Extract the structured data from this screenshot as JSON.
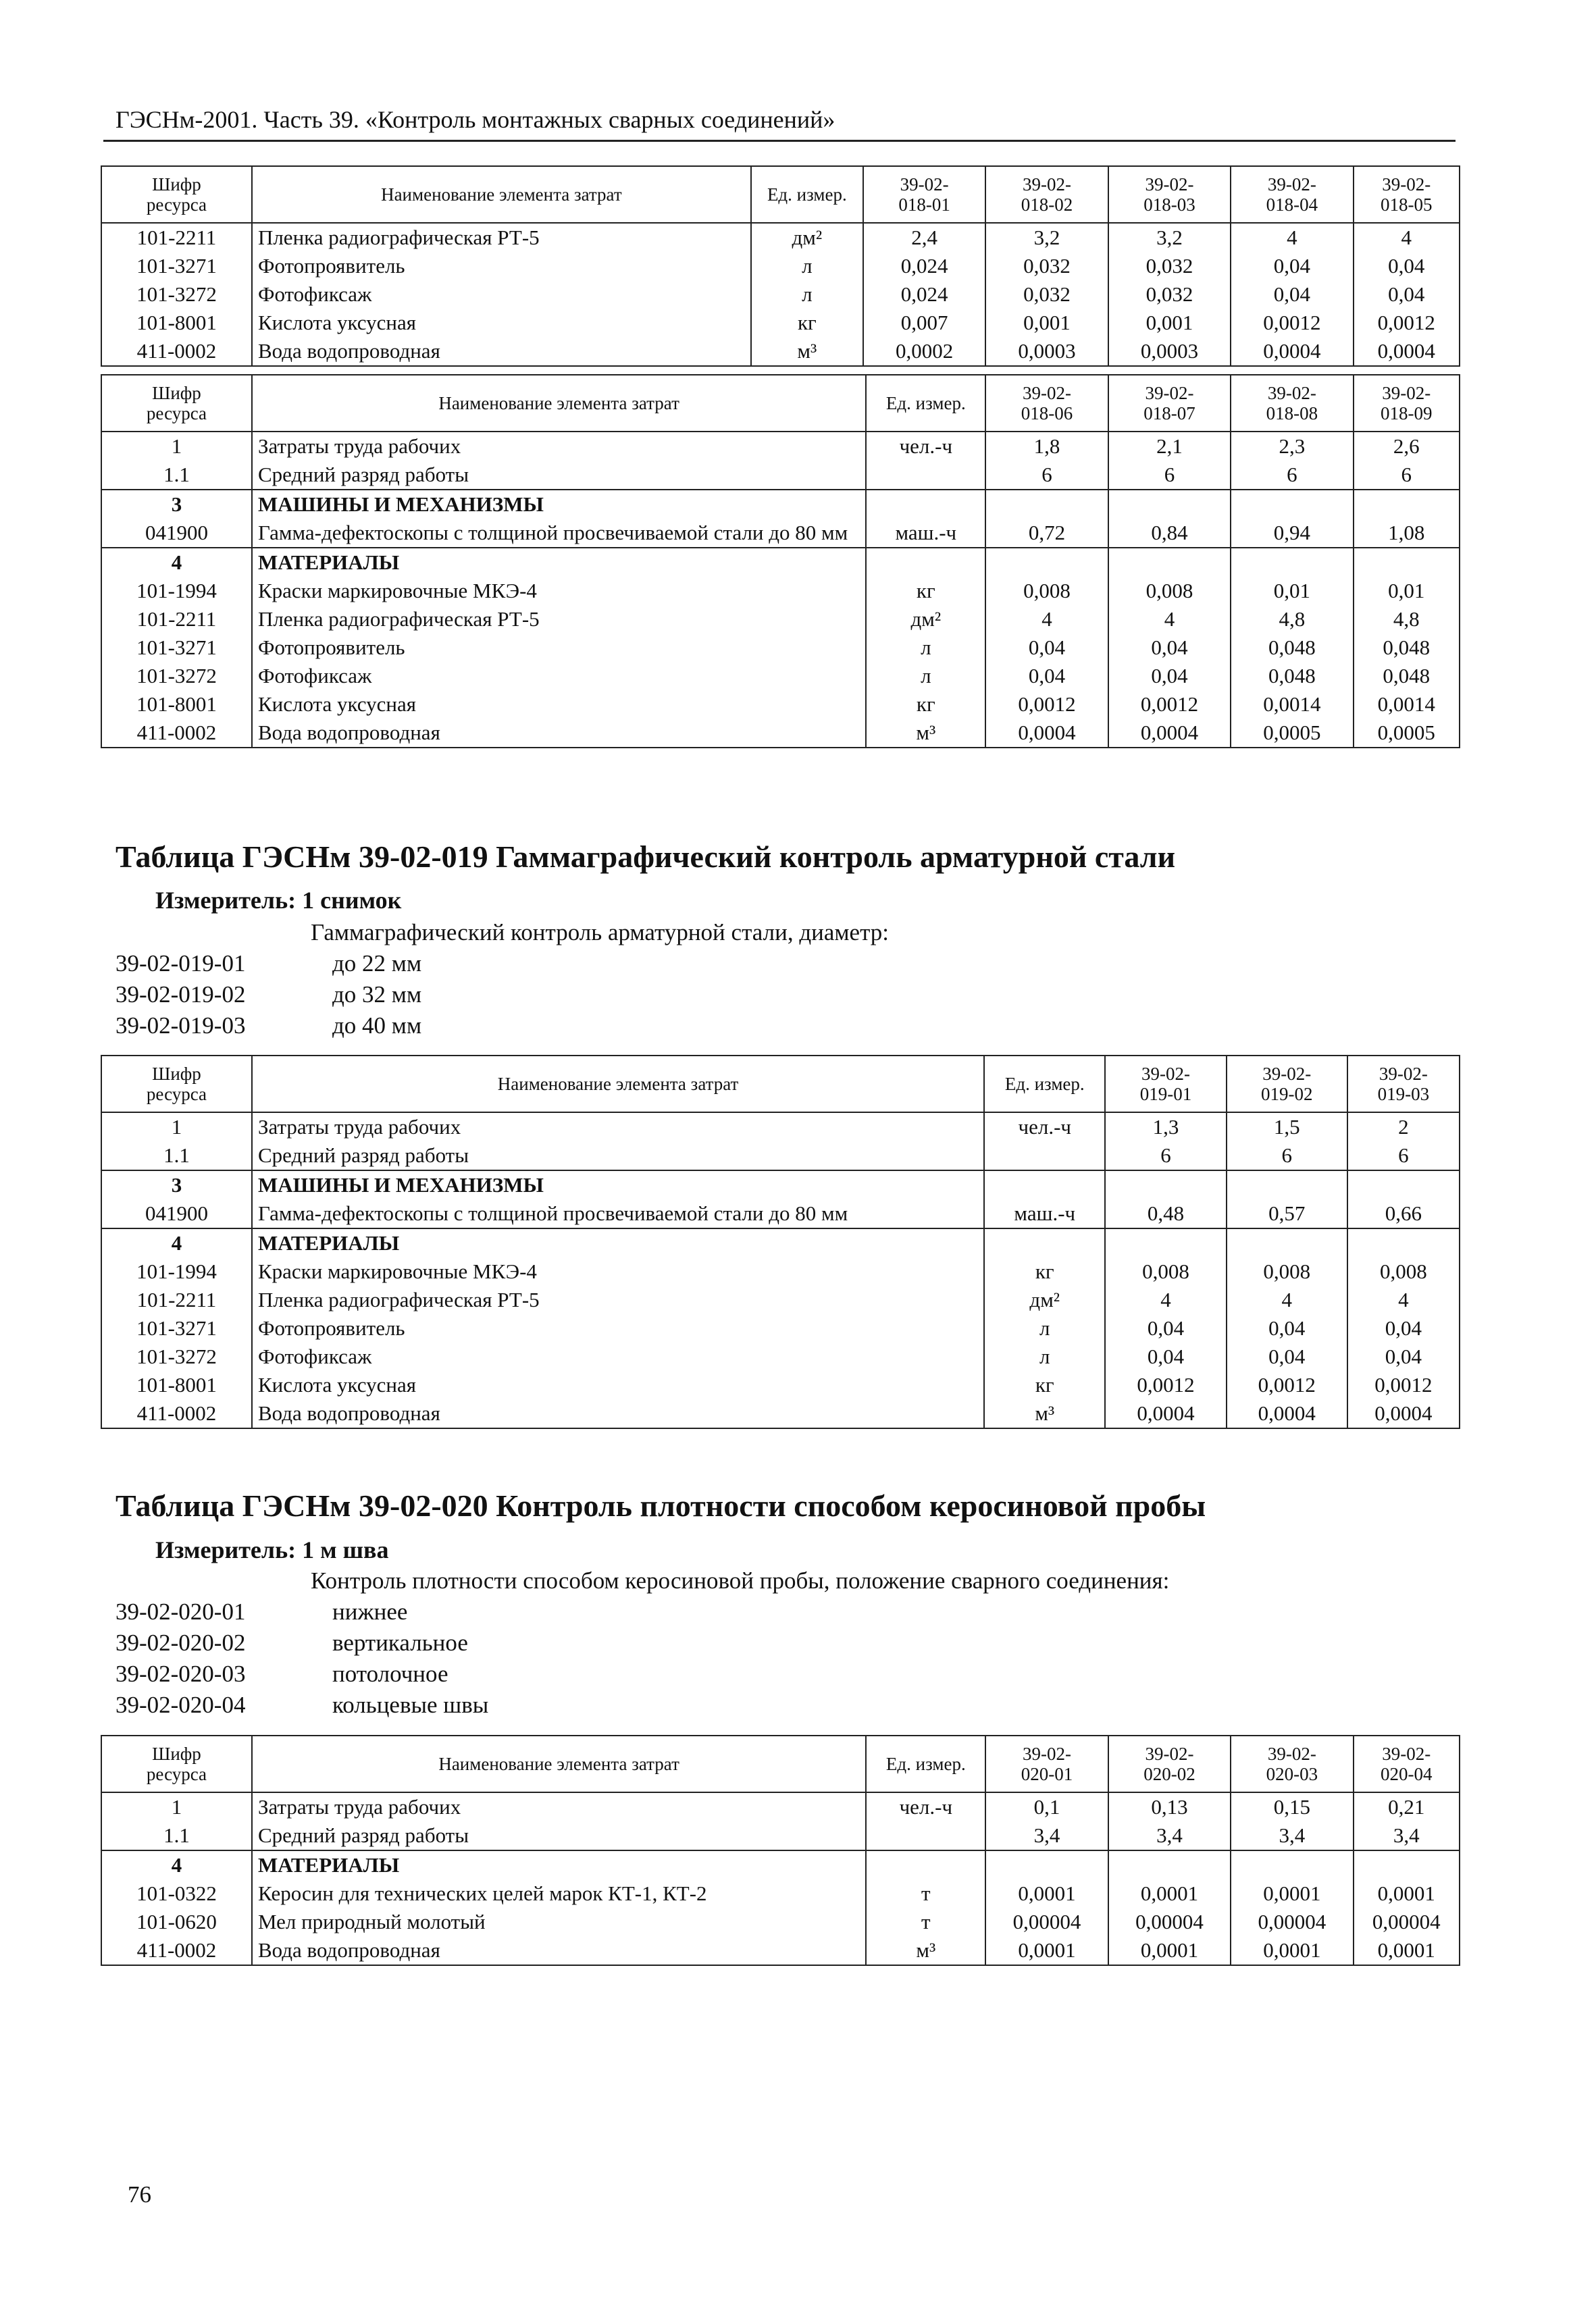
{
  "header": "ГЭСНм-2001. Часть 39. «Контроль монтажных сварных соединений»",
  "blocks": [
    {
      "table": {
        "columns": [
          "Шифр ресурса",
          "Наименование элемента затрат",
          "Ед. измер.",
          "39-02-018-01",
          "39-02-018-02",
          "39-02-018-03",
          "39-02-018-04",
          "39-02-018-05"
        ],
        "body": [
          [
            [
              "101-2211",
              "Пленка радиографическая РТ-5",
              "дм²",
              "2,4",
              "3,2",
              "3,2",
              "4",
              "4"
            ],
            [
              "101-3271",
              "Фотопроявитель",
              "л",
              "0,024",
              "0,032",
              "0,032",
              "0,04",
              "0,04"
            ],
            [
              "101-3272",
              "Фотофиксаж",
              "л",
              "0,024",
              "0,032",
              "0,032",
              "0,04",
              "0,04"
            ],
            [
              "101-8001",
              "Кислота уксусная",
              "кг",
              "0,007",
              "0,001",
              "0,001",
              "0,0012",
              "0,0012"
            ],
            [
              "411-0002",
              "Вода водопроводная",
              "м³",
              "0,0002",
              "0,0003",
              "0,0003",
              "0,0004",
              "0,0004"
            ]
          ]
        ]
      }
    },
    {
      "table": {
        "columns": [
          "Шифр ресурса",
          "Наименование элемента затрат",
          "Ед. измер.",
          "39-02-018-06",
          "39-02-018-07",
          "39-02-018-08",
          "39-02-018-09"
        ],
        "body": [
          [
            [
              "1",
              "Затраты труда рабочих",
              "чел.-ч",
              "1,8",
              "2,1",
              "2,3",
              "2,6"
            ],
            [
              "1.1",
              "Средний разряд работы",
              null,
              "6",
              "6",
              "6",
              "6"
            ]
          ],
          [
            [
              "3",
              "МАШИНЫ И МЕХАНИЗМЫ"
            ],
            [
              "041900",
              "Гамма-дефектоскопы с толщиной просвечиваемой стали до 80 мм",
              "маш.-ч",
              "0,72",
              "0,84",
              "0,94",
              "1,08"
            ]
          ],
          [
            [
              "4",
              "МАТЕРИАЛЫ"
            ],
            [
              "101-1994",
              "Краски маркировочные МКЭ-4",
              "кг",
              "0,008",
              "0,008",
              "0,01",
              "0,01"
            ],
            [
              "101-2211",
              "Пленка радиографическая РТ-5",
              "дм²",
              "4",
              "4",
              "4,8",
              "4,8"
            ],
            [
              "101-3271",
              "Фотопроявитель",
              "л",
              "0,04",
              "0,04",
              "0,048",
              "0,048"
            ],
            [
              "101-3272",
              "Фотофиксаж",
              "л",
              "0,04",
              "0,04",
              "0,048",
              "0,048"
            ],
            [
              "101-8001",
              "Кислота уксусная",
              "кг",
              "0,0012",
              "0,0012",
              "0,0014",
              "0,0014"
            ],
            [
              "411-0002",
              "Вода водопроводная",
              "м³",
              "0,0004",
              "0,0004",
              "0,0005",
              "0,0005"
            ]
          ]
        ]
      }
    },
    {
      "title": "Таблица ГЭСНм 39-02-019 Гаммаграфический контроль арматурной стали",
      "meter": "Измеритель: 1 снимок",
      "description": "Гаммаграфический контроль арматурной стали, диаметр:",
      "items": [
        [
          "39-02-019-01",
          "до 22 мм"
        ],
        [
          "39-02-019-02",
          "до 32 мм"
        ],
        [
          "39-02-019-03",
          "до 40 мм"
        ]
      ],
      "table": {
        "columns": [
          "Шифр ресурса",
          "Наименование элемента затрат",
          "Ед. измер.",
          "39-02-019-01",
          "39-02-019-02",
          "39-02-019-03"
        ],
        "body": [
          [
            [
              "1",
              "Затраты труда рабочих",
              "чел.-ч",
              "1,3",
              "1,5",
              "2"
            ],
            [
              "1.1",
              "Средний разряд работы",
              null,
              "6",
              "6",
              "6"
            ]
          ],
          [
            [
              "3",
              "МАШИНЫ И МЕХАНИЗМЫ"
            ],
            [
              "041900",
              "Гамма-дефектоскопы с толщиной просвечиваемой стали до 80 мм",
              "маш.-ч",
              "0,48",
              "0,57",
              "0,66"
            ]
          ],
          [
            [
              "4",
              "МАТЕРИАЛЫ"
            ],
            [
              "101-1994",
              "Краски маркировочные МКЭ-4",
              "кг",
              "0,008",
              "0,008",
              "0,008"
            ],
            [
              "101-2211",
              "Пленка радиографическая РТ-5",
              "дм²",
              "4",
              "4",
              "4"
            ],
            [
              "101-3271",
              "Фотопроявитель",
              "л",
              "0,04",
              "0,04",
              "0,04"
            ],
            [
              "101-3272",
              "Фотофиксаж",
              "л",
              "0,04",
              "0,04",
              "0,04"
            ],
            [
              "101-8001",
              "Кислота уксусная",
              "кг",
              "0,0012",
              "0,0012",
              "0,0012"
            ],
            [
              "411-0002",
              "Вода водопроводная",
              "м³",
              "0,0004",
              "0,0004",
              "0,0004"
            ]
          ]
        ]
      }
    },
    {
      "title": "Таблица ГЭСНм 39-02-020 Контроль плотности способом керосиновой пробы",
      "meter": "Измеритель: 1 м шва",
      "description": "Контроль плотности способом керосиновой пробы, положение сварного соединения:",
      "items": [
        [
          "39-02-020-01",
          "нижнее"
        ],
        [
          "39-02-020-02",
          "вертикальное"
        ],
        [
          "39-02-020-03",
          "потолочное"
        ],
        [
          "39-02-020-04",
          "кольцевые швы"
        ]
      ],
      "table": {
        "columns": [
          "Шифр ресурса",
          "Наименование элемента затрат",
          "Ед. измер.",
          "39-02-020-01",
          "39-02-020-02",
          "39-02-020-03",
          "39-02-020-04"
        ],
        "body": [
          [
            [
              "1",
              "Затраты труда рабочих",
              "чел.-ч",
              "0,1",
              "0,13",
              "0,15",
              "0,21"
            ],
            [
              "1.1",
              "Средний разряд работы",
              null,
              "3,4",
              "3,4",
              "3,4",
              "3,4"
            ]
          ],
          [
            [
              "4",
              "МАТЕРИАЛЫ"
            ],
            [
              "101-0322",
              "Керосин для технических целей марок КТ-1, КТ-2",
              "т",
              "0,0001",
              "0,0001",
              "0,0001",
              "0,0001"
            ],
            [
              "101-0620",
              "Мел природный молотый",
              "т",
              "0,00004",
              "0,00004",
              "0,00004",
              "0,00004"
            ],
            [
              "411-0002",
              "Вода водопроводная",
              "м³",
              "0,0001",
              "0,0001",
              "0,0001",
              "0,0001"
            ]
          ]
        ]
      }
    }
  ],
  "page_number": "76"
}
